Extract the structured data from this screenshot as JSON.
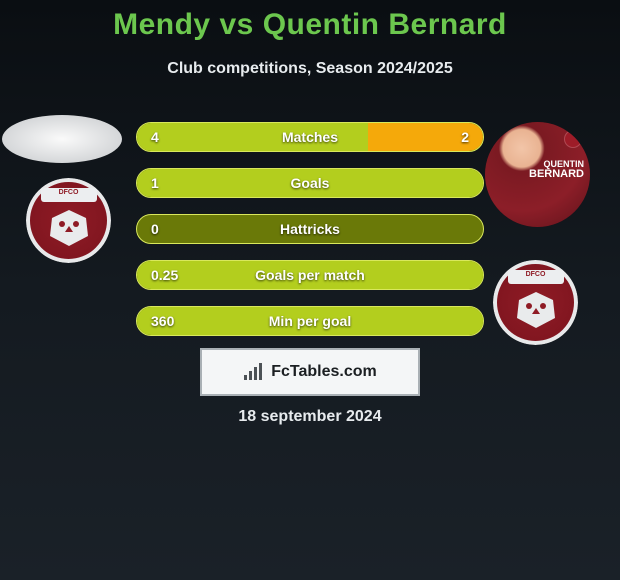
{
  "background_colors": [
    "#0a0e12",
    "#141a20",
    "#1a2128"
  ],
  "title_color": "#6cc74e",
  "text_color": "#e7ebee",
  "title_parts": {
    "p1": "Mendy",
    "vs": "vs",
    "p2": "Quentin Bernard"
  },
  "title_fontsize": 30,
  "subtitle": "Club competitions, Season 2024/2025",
  "subtitle_fontsize": 16,
  "player_left": {
    "name": "Mendy",
    "photo_bg": "#ececec"
  },
  "player_right": {
    "name": "Quentin Bernard",
    "tag_first": "QUENTIN",
    "tag_last": "BERNARD",
    "jersey_color": "#8c1e28"
  },
  "club": {
    "name": "DFCO",
    "crest_bg": "#8f1b25",
    "crest_border": "#e8e9ea",
    "text": "DFCO"
  },
  "bars": {
    "track_bg": "#6a7908",
    "track_border": "#d9e85c",
    "left_fill": "#b3ce1e",
    "right_fill": "#f5a90a",
    "label_color": "#ffffff",
    "rows": [
      {
        "label": "Matches",
        "left_val": "4",
        "right_val": "2",
        "left_pct": 66.7,
        "right_pct": 33.3
      },
      {
        "label": "Goals",
        "left_val": "1",
        "right_val": "",
        "left_pct": 100,
        "right_pct": 0
      },
      {
        "label": "Hattricks",
        "left_val": "0",
        "right_val": "",
        "left_pct": 0,
        "right_pct": 0
      },
      {
        "label": "Goals per match",
        "left_val": "0.25",
        "right_val": "",
        "left_pct": 100,
        "right_pct": 0
      },
      {
        "label": "Min per goal",
        "left_val": "360",
        "right_val": "",
        "left_pct": 100,
        "right_pct": 0
      }
    ]
  },
  "credit": {
    "text": "FcTables.com",
    "box_bg": "#f4f6f7",
    "box_border": "#a9b0b5",
    "icon_color": "#4c5256"
  },
  "date": "18 september 2024"
}
